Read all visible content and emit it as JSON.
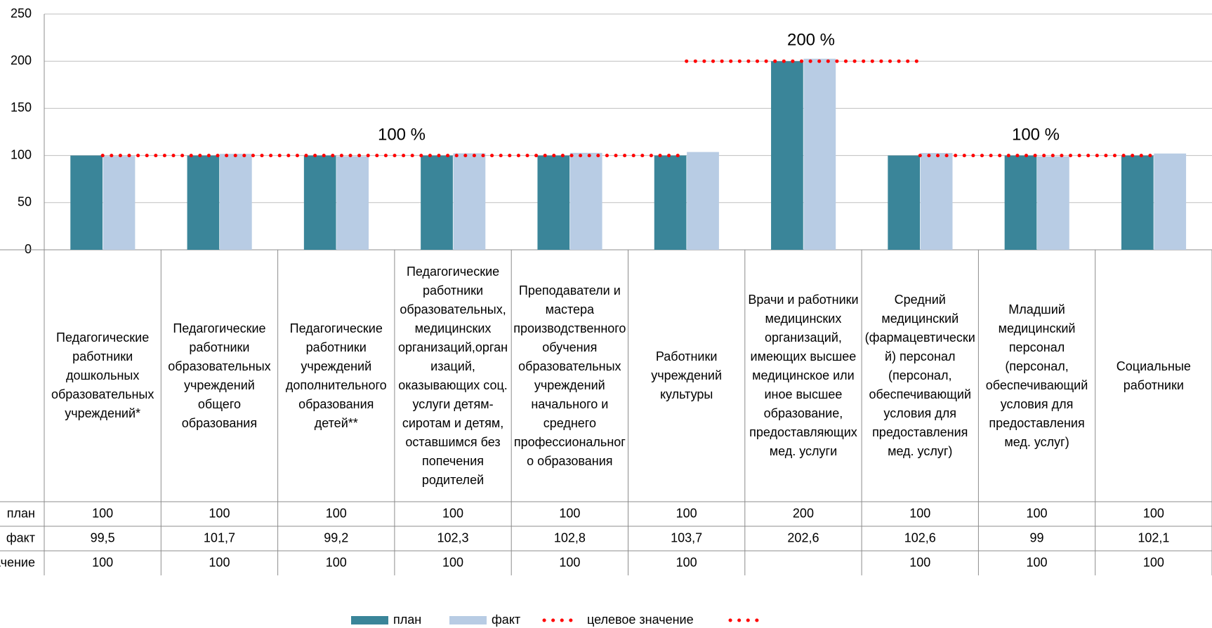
{
  "chart_data": {
    "type": "bar",
    "categories": [
      "Педагогические работники дошкольных образовательных учреждений*",
      "Педагогические работники образовательных учреждений общего образования",
      "Педагогические работники учреждений дополнительного образования детей**",
      "Педагогические работники образовательных, медицинских организаций,организаций, оказывающих соц. услуги детям-сиротам и детям, оставшимся без попечения родителей",
      "Преподаватели и мастера производственного обучения образовательных учреждений начального и среднего профессионального образования",
      "Работники учреждений культуры",
      "Врачи и работники медицинских организаций, имеющих высшее медицинское или иное высшее образование, предоставляющих мед. услуги",
      "Средний медицинский (фармацевтический) персонал (персонал, обеспечивающий условия для предоставления мед. услуг)",
      "Младший медицинский персонал (персонал, обеспечивающий условия для предоставления мед. услуг)",
      "Социальные работники"
    ],
    "series": [
      {
        "name": "план",
        "color": "#3a8599",
        "values": [
          100,
          100,
          100,
          100,
          100,
          100,
          200,
          100,
          100,
          100
        ]
      },
      {
        "name": "факт",
        "color": "#b8cce4",
        "values": [
          99.5,
          101.7,
          99.2,
          102.3,
          102.8,
          103.7,
          202.6,
          102.6,
          99,
          102.1
        ],
        "value_labels": [
          "99,5",
          "101,7",
          "99,2",
          "102,3",
          "102,8",
          "103,7",
          "202,6",
          "102,6",
          "99",
          "102,1"
        ]
      },
      {
        "name": "целевое значение",
        "color": "#ff0000",
        "values": [
          100,
          100,
          100,
          100,
          100,
          100,
          null,
          100,
          100,
          100
        ]
      },
      {
        "color": "#ff0000",
        "values": [
          null,
          null,
          null,
          null,
          null,
          null,
          200,
          null,
          null,
          null
        ]
      }
    ],
    "annotations": [
      {
        "text": "100 %"
      },
      {
        "text": "200 %"
      },
      {
        "text": "100 %"
      }
    ],
    "ylim": [
      0,
      250
    ],
    "yticks": [
      0,
      50,
      100,
      150,
      200,
      250
    ],
    "grid": true,
    "legend": "bottom"
  }
}
